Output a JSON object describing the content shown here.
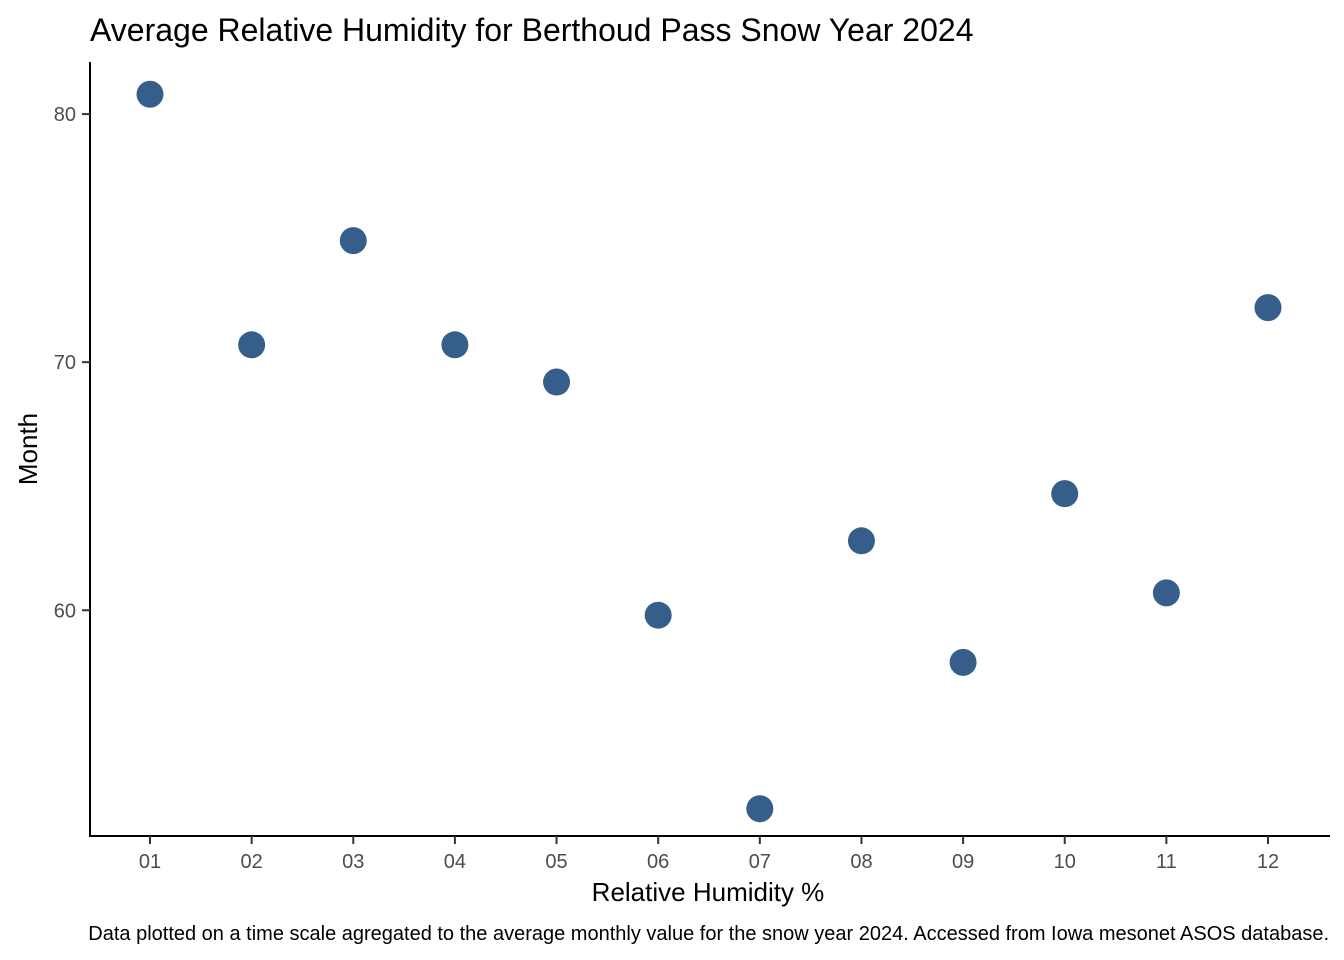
{
  "chart_data": {
    "type": "scatter",
    "title": "Average Relative Humidity for Berthoud Pass Snow Year 2024",
    "xlabel": "Relative Humidity %",
    "ylabel": "Month",
    "caption": "Data plotted on a time scale agregated to the average monthly value for the snow year 2024. Accessed from Iowa mesonet ASOS database.",
    "categories": [
      "01",
      "02",
      "03",
      "04",
      "05",
      "06",
      "07",
      "08",
      "09",
      "10",
      "11",
      "12"
    ],
    "values": [
      80.8,
      70.7,
      74.9,
      70.7,
      69.2,
      59.8,
      52.0,
      62.8,
      57.9,
      64.7,
      60.7,
      72.2
    ],
    "ylim": [
      50.9,
      82.1
    ],
    "y_ticks": [
      60,
      70,
      80
    ],
    "point_color": "#355F8A",
    "grid": false,
    "legend": "none"
  }
}
